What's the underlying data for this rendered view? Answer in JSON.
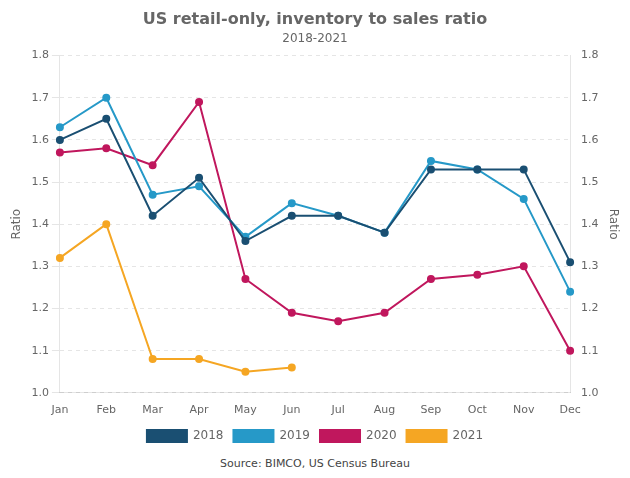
{
  "chart_data": {
    "type": "line",
    "title": "US retail-only, inventory to sales ratio",
    "subtitle": "2018-2021",
    "source": "Source: BIMCO, US Census Bureau",
    "ylabel": "Ratio",
    "y2label": "Ratio",
    "categories": [
      "Jan",
      "Feb",
      "Mar",
      "Apr",
      "May",
      "Jun",
      "Jul",
      "Aug",
      "Sep",
      "Oct",
      "Nov",
      "Dec"
    ],
    "series": [
      {
        "name": "2018",
        "color": "#1a4f72",
        "marker": "circle",
        "line_style": "solid",
        "values": [
          1.6,
          1.65,
          1.42,
          1.51,
          1.36,
          1.42,
          1.42,
          1.38,
          1.53,
          1.53,
          1.53,
          1.31
        ]
      },
      {
        "name": "2019",
        "color": "#2699c8",
        "marker": "circle",
        "line_style": "solid",
        "values": [
          1.63,
          1.7,
          1.47,
          1.49,
          1.37,
          1.45,
          1.42,
          1.38,
          1.55,
          1.53,
          1.46,
          1.24
        ]
      },
      {
        "name": "2020",
        "color": "#c0175d",
        "marker": "circle",
        "line_style": "solid",
        "values": [
          1.57,
          1.58,
          1.54,
          1.69,
          1.27,
          1.19,
          1.17,
          1.19,
          1.27,
          1.28,
          1.3,
          1.1
        ]
      },
      {
        "name": "2021",
        "color": "#f5a623",
        "marker": "circle",
        "line_style": "solid",
        "values": [
          1.32,
          1.4,
          1.08,
          1.08,
          1.05,
          1.06,
          null,
          null,
          null,
          null,
          null,
          null
        ]
      }
    ],
    "ylim": [
      1.0,
      1.8
    ],
    "yticks": [
      {
        "value": 1.0,
        "label": "1.0"
      },
      1.1,
      1.2,
      1.3,
      1.4,
      1.5,
      1.6,
      1.7,
      1.8
    ],
    "y2lim": [
      1.0,
      1.8
    ],
    "y2ticks": [
      {
        "value": 1.0,
        "label": "1.0"
      },
      1.1,
      1.2,
      1.3,
      1.4,
      1.5,
      1.6,
      1.7,
      1.8
    ],
    "grid": true,
    "legend": "bottom"
  }
}
